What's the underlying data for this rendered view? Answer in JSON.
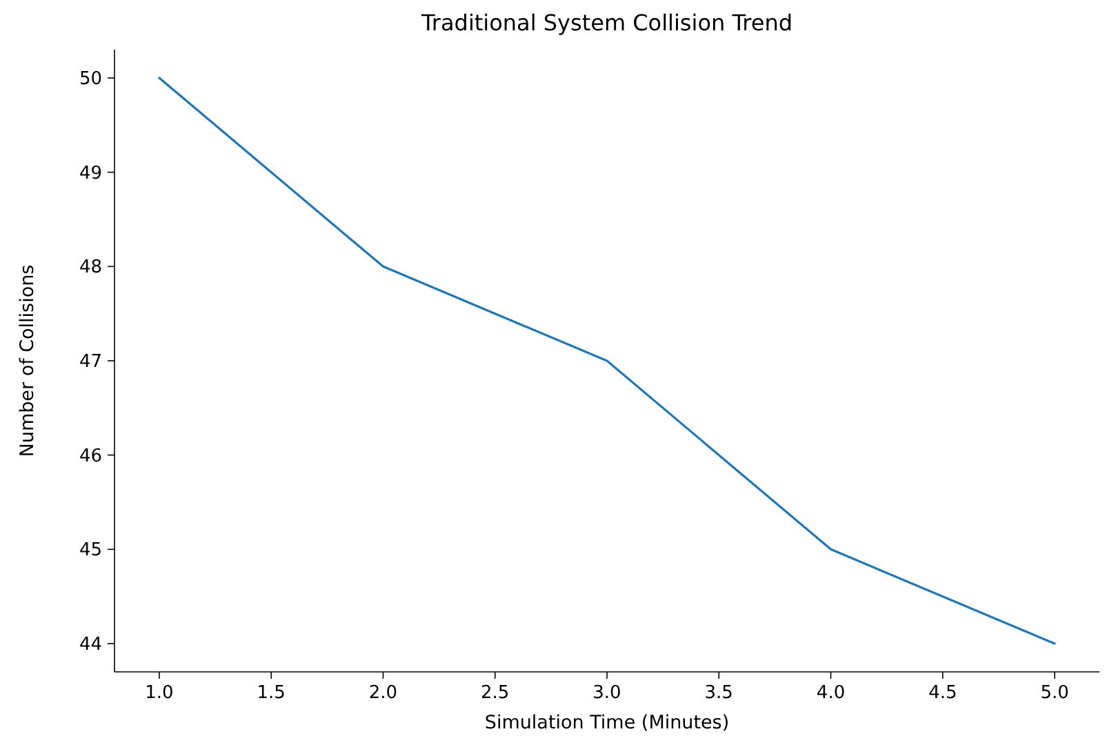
{
  "chart_data": {
    "type": "line",
    "title": "Traditional System Collision Trend",
    "xlabel": "Simulation Time (Minutes)",
    "ylabel": "Number of Collisions",
    "x": [
      1,
      2,
      3,
      4,
      5
    ],
    "series": [
      {
        "color": "#1f77b4",
        "values": [
          50,
          48,
          47,
          45,
          44
        ]
      }
    ],
    "xlim": [
      0.8,
      5.2
    ],
    "ylim": [
      43.7,
      50.3
    ],
    "xticks": [
      {
        "value": 1,
        "label": "1.0"
      },
      {
        "value": 1.5,
        "label": "1.5"
      },
      {
        "value": 2,
        "label": "2.0"
      },
      {
        "value": 2.5,
        "label": "2.5"
      },
      {
        "value": 3,
        "label": "3.0"
      },
      {
        "value": 3.5,
        "label": "3.5"
      },
      {
        "value": 4,
        "label": "4.0"
      },
      {
        "value": 4.5,
        "label": "4.5"
      },
      {
        "value": 5,
        "label": "5.0"
      }
    ],
    "yticks": [
      44,
      45,
      46,
      47,
      48,
      49,
      50
    ],
    "grid": false,
    "marker": "none",
    "line_style": "solid"
  }
}
